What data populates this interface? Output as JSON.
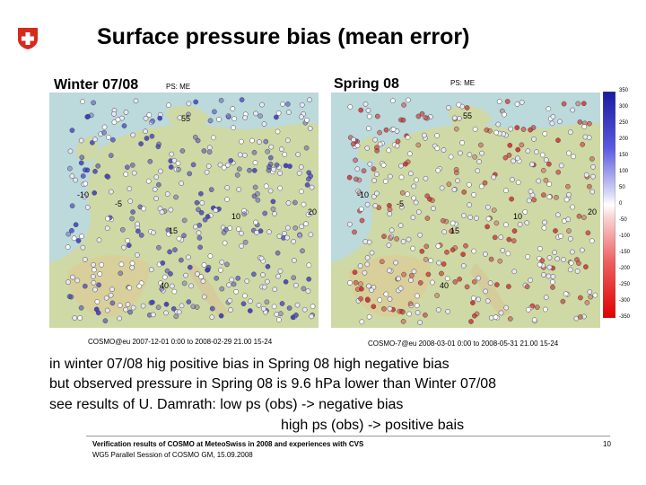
{
  "slide_title": "Surface pressure bias (mean error)",
  "maps": [
    {
      "label": "Winter 07/08",
      "ps_label": "PS: ME",
      "grid_labels": [
        "55",
        "-10",
        "-5",
        "40",
        "15",
        "10",
        "20"
      ],
      "caption": "COSMO@eu 2007-12-01  0:00 to 2008-02-29 21.00 15-24",
      "dominant_color": "#3a3acc"
    },
    {
      "label": "Spring 08",
      "ps_label": "PS: ME",
      "grid_labels": [
        "55",
        "-10",
        "-5",
        "40",
        "15",
        "10",
        "20"
      ],
      "caption": "COSMO-7@eu 2008-03-01  0:00 to 2008-05-31 21.00 15-24",
      "dominant_color": "#d83030"
    }
  ],
  "colorbar": {
    "ticks": [
      "350",
      "300",
      "250",
      "200",
      "150",
      "100",
      "50",
      "0",
      "-50",
      "-100",
      "-150",
      "-200",
      "-250",
      "-300",
      "-350"
    ],
    "top_color": "#1a1aa0",
    "bottom_color": "#e00000"
  },
  "body_lines": [
    "in winter 07/08 hig  positive bias      in Spring 08 high negative bias",
    "but observed pressure in Spring 08 is 9.6 hPa lower than Winter 07/08",
    "see results of U. Damrath:  low ps  (obs) -> negative bias",
    "high ps (obs) -> positive bais"
  ],
  "footer": {
    "line1": "Verification results of COSMO at MeteoSwiss in 2008 and experiences with CVS",
    "line2": "WG5 Parallel Session of COSMO GM, 15.09.2008",
    "page_number": "10"
  },
  "logo": {
    "name": "swiss-cross-logo",
    "color": "#d52b1e"
  }
}
